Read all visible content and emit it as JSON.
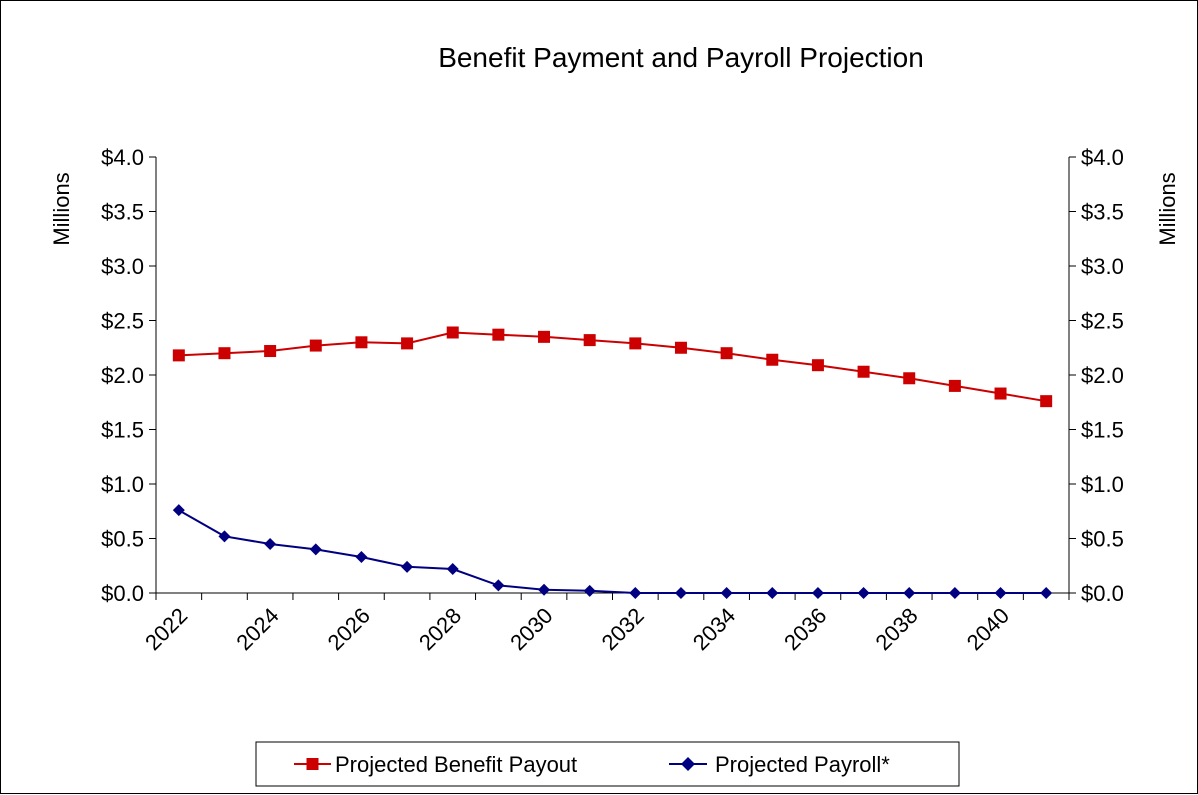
{
  "colors": {
    "benefit": "#CC0000",
    "payroll": "#000080",
    "axis": "#000000",
    "background": "#FFFFFF"
  },
  "chart_data": {
    "type": "line",
    "title": "Benefit  Payment and Payroll Projection",
    "xlabel": "",
    "ylabel_left": "Millions",
    "ylabel_right": "Millions",
    "ylim": [
      0,
      4.0
    ],
    "yticks": [
      0,
      0.5,
      1.0,
      1.5,
      2.0,
      2.5,
      3.0,
      3.5,
      4.0
    ],
    "ytick_labels": [
      "$0.0",
      "$0.5",
      "$1.0",
      "$1.5",
      "$2.0",
      "$2.5",
      "$3.0",
      "$3.5",
      "$4.0"
    ],
    "x": [
      2022,
      2023,
      2024,
      2025,
      2026,
      2027,
      2028,
      2029,
      2030,
      2031,
      2032,
      2033,
      2034,
      2035,
      2036,
      2037,
      2038,
      2039,
      2040,
      2041
    ],
    "xtick_labels": [
      "2022",
      "2024",
      "2026",
      "2028",
      "2030",
      "2032",
      "2034",
      "2036",
      "2038",
      "2040"
    ],
    "grid": false,
    "legend_position": "bottom",
    "series": [
      {
        "name": "Projected Benefit  Payout",
        "marker": "square",
        "values": [
          2.18,
          2.2,
          2.22,
          2.27,
          2.3,
          2.29,
          2.39,
          2.37,
          2.35,
          2.32,
          2.29,
          2.25,
          2.2,
          2.14,
          2.09,
          2.03,
          1.97,
          1.9,
          1.83,
          1.76
        ]
      },
      {
        "name": "Projected  Payroll*",
        "marker": "diamond",
        "values": [
          0.76,
          0.52,
          0.45,
          0.4,
          0.33,
          0.24,
          0.22,
          0.07,
          0.03,
          0.02,
          0.0,
          0.0,
          0.0,
          0.0,
          0.0,
          0.0,
          0.0,
          0.0,
          0.0,
          0.0
        ]
      }
    ]
  }
}
